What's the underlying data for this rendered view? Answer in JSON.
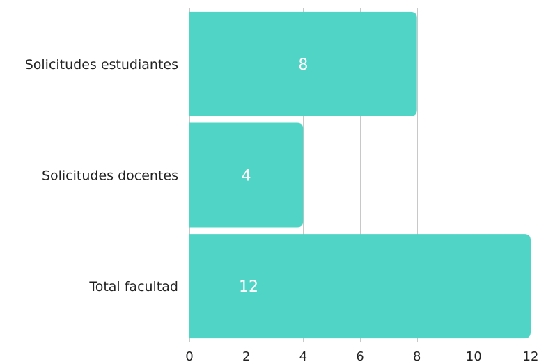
{
  "chart_data": {
    "type": "bar",
    "orientation": "horizontal",
    "categories": [
      "Solicitudes estudiantes",
      "Solicitudes docentes",
      "Total facultad"
    ],
    "values": [
      8,
      4,
      12
    ],
    "data_labels": [
      "8",
      "4",
      "12"
    ],
    "xlim": [
      0,
      12
    ],
    "xticks": [
      0,
      2,
      4,
      6,
      8,
      10,
      12
    ],
    "xtick_labels": [
      "0",
      "2",
      "4",
      "6",
      "8",
      "10",
      "12"
    ],
    "grid": true,
    "legend": "none",
    "title": "",
    "xlabel": "",
    "ylabel": "",
    "bar_color": "#4fd4c6",
    "label_color": "#ffffff"
  }
}
